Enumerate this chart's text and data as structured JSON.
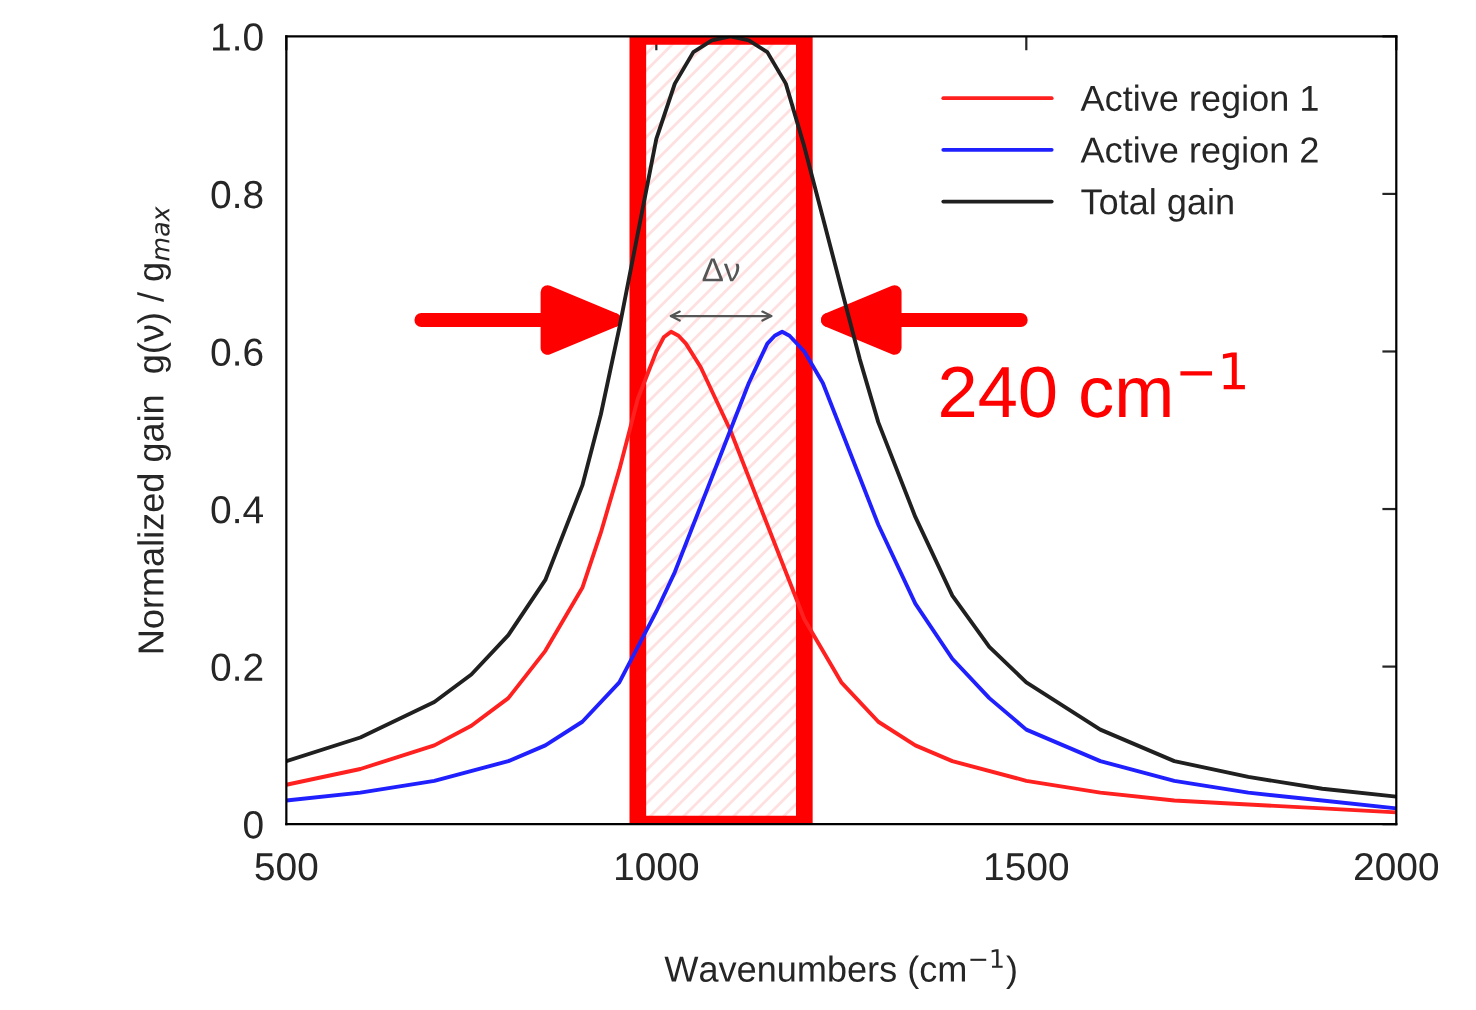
{
  "chart_data": {
    "type": "line",
    "xlabel": "Wavenumbers (cm$^{−1}$)",
    "ylabel": "Normalized gain  g(ν) / g$_{max}$",
    "xlim": [
      500,
      2000
    ],
    "xticks": [
      500,
      1000,
      1500,
      2000
    ],
    "ylim": [
      0,
      1.0
    ],
    "yticks": [
      {
        "value": 0,
        "label": "0"
      },
      {
        "value": 0.2,
        "label": "0.2"
      },
      {
        "value": 0.4,
        "label": "0.4"
      },
      {
        "value": 0.6,
        "label": "0.6"
      },
      {
        "value": 0.8,
        "label": "0.8"
      },
      {
        "value": 1.0,
        "label": "1.0"
      }
    ],
    "grid": false,
    "legend": "top right",
    "marker": "none",
    "line_style": "solid",
    "series": [
      {
        "name": "Active region 1",
        "color": "#ff2020",
        "x": [
          500,
          600,
          700,
          750,
          800,
          850,
          900,
          925,
          950,
          975,
          1000,
          1010,
          1020,
          1030,
          1040,
          1060,
          1080,
          1100,
          1125,
          1150,
          1175,
          1200,
          1250,
          1300,
          1350,
          1400,
          1500,
          1600,
          1700,
          1800,
          1900,
          2000
        ],
        "values": [
          0.05,
          0.07,
          0.1,
          0.125,
          0.16,
          0.22,
          0.3,
          0.37,
          0.45,
          0.54,
          0.6,
          0.618,
          0.625,
          0.62,
          0.61,
          0.58,
          0.54,
          0.5,
          0.44,
          0.38,
          0.32,
          0.26,
          0.18,
          0.13,
          0.1,
          0.08,
          0.055,
          0.04,
          0.03,
          0.025,
          0.02,
          0.015
        ]
      },
      {
        "name": "Active region 2",
        "color": "#2020ff",
        "x": [
          500,
          600,
          700,
          800,
          850,
          900,
          950,
          1000,
          1025,
          1050,
          1075,
          1100,
          1125,
          1150,
          1160,
          1170,
          1180,
          1200,
          1225,
          1250,
          1275,
          1300,
          1350,
          1400,
          1450,
          1500,
          1600,
          1700,
          1800,
          1900,
          2000
        ],
        "values": [
          0.03,
          0.04,
          0.055,
          0.08,
          0.1,
          0.13,
          0.18,
          0.27,
          0.32,
          0.38,
          0.44,
          0.5,
          0.56,
          0.61,
          0.62,
          0.625,
          0.62,
          0.6,
          0.56,
          0.5,
          0.44,
          0.38,
          0.28,
          0.21,
          0.16,
          0.12,
          0.08,
          0.055,
          0.04,
          0.03,
          0.02
        ]
      },
      {
        "name": "Total gain",
        "color": "#202020",
        "x": [
          500,
          600,
          700,
          750,
          800,
          850,
          900,
          925,
          950,
          975,
          1000,
          1025,
          1050,
          1075,
          1100,
          1125,
          1150,
          1175,
          1200,
          1225,
          1250,
          1275,
          1300,
          1350,
          1400,
          1450,
          1500,
          1600,
          1700,
          1800,
          1900,
          2000
        ],
        "values": [
          0.08,
          0.11,
          0.155,
          0.19,
          0.24,
          0.31,
          0.43,
          0.52,
          0.63,
          0.75,
          0.87,
          0.94,
          0.98,
          0.995,
          1.0,
          0.995,
          0.98,
          0.94,
          0.86,
          0.77,
          0.68,
          0.59,
          0.51,
          0.39,
          0.29,
          0.225,
          0.18,
          0.12,
          0.08,
          0.06,
          0.045,
          0.035
        ]
      }
    ],
    "bands": [
      {
        "axis": "x",
        "from": 975,
        "to": 1200,
        "label": "240 cm$^{−1}$",
        "color": "#ff0000"
      }
    ],
    "annotations": [
      "Δν"
    ]
  }
}
